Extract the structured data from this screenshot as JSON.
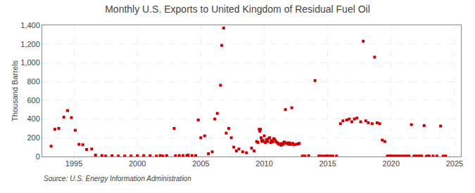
{
  "chart_data": {
    "type": "scatter",
    "title": "Monthly U.S. Exports to United Kingdom of Residual Fuel Oil",
    "ylabel": "Thousand Barrels",
    "annotations": [
      "Source: U.S. Energy Information Administration"
    ],
    "color": "#cc0000",
    "marker": "square",
    "grid": true,
    "xlim": [
      1992.5,
      2025.5
    ],
    "ylim": [
      0,
      1400
    ],
    "xticks": [
      1995,
      2000,
      2005,
      2010,
      2015,
      2020,
      2025
    ],
    "yticks": [
      0,
      200,
      400,
      600,
      800,
      {
        "value": 1000,
        "label": "1,000"
      },
      {
        "value": 1200,
        "label": "1,200"
      },
      {
        "value": 1400,
        "label": "1,400"
      }
    ],
    "x": [
      1993.2,
      1993.5,
      1993.8,
      1994.2,
      1994.5,
      1994.8,
      1995.1,
      1995.4,
      1995.7,
      1996.0,
      1996.4,
      1996.7,
      1997.2,
      1997.5,
      1998.0,
      1998.5,
      1999.0,
      1999.5,
      2000.0,
      2000.5,
      2001.0,
      2001.5,
      2001.8,
      2002.0,
      2002.3,
      2002.9,
      2003.0,
      2003.3,
      2003.6,
      2003.9,
      2004.0,
      2004.3,
      2004.6,
      2004.8,
      2005.0,
      2005.3,
      2005.6,
      2005.9,
      2006.1,
      2006.3,
      2006.55,
      2006.65,
      2006.8,
      2007.0,
      2007.2,
      2007.4,
      2007.6,
      2007.8,
      2008.0,
      2008.3,
      2008.6,
      2009.0,
      2009.2,
      2009.4,
      2009.5,
      2009.6,
      2009.65,
      2009.7,
      2009.75,
      2009.8,
      2009.85,
      2009.9,
      2010.0,
      2010.08,
      2010.17,
      2010.25,
      2010.33,
      2010.42,
      2010.5,
      2010.58,
      2010.67,
      2010.75,
      2010.83,
      2010.92,
      2011.0,
      2011.08,
      2011.17,
      2011.25,
      2011.33,
      2011.42,
      2011.5,
      2011.58,
      2011.67,
      2011.75,
      2011.83,
      2011.92,
      2012.0,
      2012.08,
      2012.17,
      2012.25,
      2012.33,
      2012.5,
      2012.67,
      2012.75,
      2013.0,
      2013.2,
      2013.5,
      2014.0,
      2014.3,
      2014.5,
      2014.7,
      2014.9,
      2015.0,
      2015.2,
      2015.4,
      2015.7,
      2016.0,
      2016.2,
      2016.5,
      2016.7,
      2016.9,
      2017.1,
      2017.3,
      2017.6,
      2017.8,
      2018.0,
      2018.2,
      2018.5,
      2018.7,
      2018.9,
      2019.1,
      2019.3,
      2019.5,
      2019.7,
      2019.9,
      2020.0,
      2020.2,
      2020.4,
      2020.6,
      2020.8,
      2021.0,
      2021.2,
      2021.4,
      2021.6,
      2021.8,
      2022.0,
      2022.2,
      2022.4,
      2022.6,
      2022.8,
      2023.0,
      2023.3,
      2023.6,
      2023.9,
      2024.1,
      2024.3
    ],
    "values": [
      110,
      290,
      300,
      420,
      490,
      415,
      280,
      130,
      125,
      75,
      80,
      15,
      10,
      5,
      8,
      5,
      5,
      5,
      8,
      10,
      8,
      5,
      10,
      5,
      10,
      300,
      8,
      10,
      10,
      10,
      15,
      10,
      10,
      390,
      200,
      220,
      30,
      50,
      400,
      460,
      760,
      1185,
      1370,
      250,
      300,
      200,
      100,
      60,
      80,
      50,
      40,
      90,
      60,
      160,
      150,
      290,
      270,
      290,
      200,
      170,
      160,
      170,
      220,
      150,
      180,
      160,
      190,
      200,
      150,
      170,
      155,
      190,
      180,
      160,
      150,
      140,
      130,
      135,
      120,
      140,
      130,
      155,
      500,
      140,
      145,
      130,
      145,
      130,
      520,
      140,
      125,
      130,
      135,
      140,
      5,
      5,
      8,
      810,
      5,
      5,
      5,
      5,
      5,
      5,
      5,
      5,
      350,
      380,
      390,
      400,
      370,
      400,
      410,
      370,
      1230,
      380,
      360,
      350,
      1060,
      360,
      350,
      175,
      160,
      5,
      5,
      5,
      5,
      5,
      5,
      5,
      5,
      5,
      5,
      340,
      5,
      5,
      5,
      5,
      330,
      5,
      5,
      5,
      5,
      325,
      5,
      5
    ]
  }
}
